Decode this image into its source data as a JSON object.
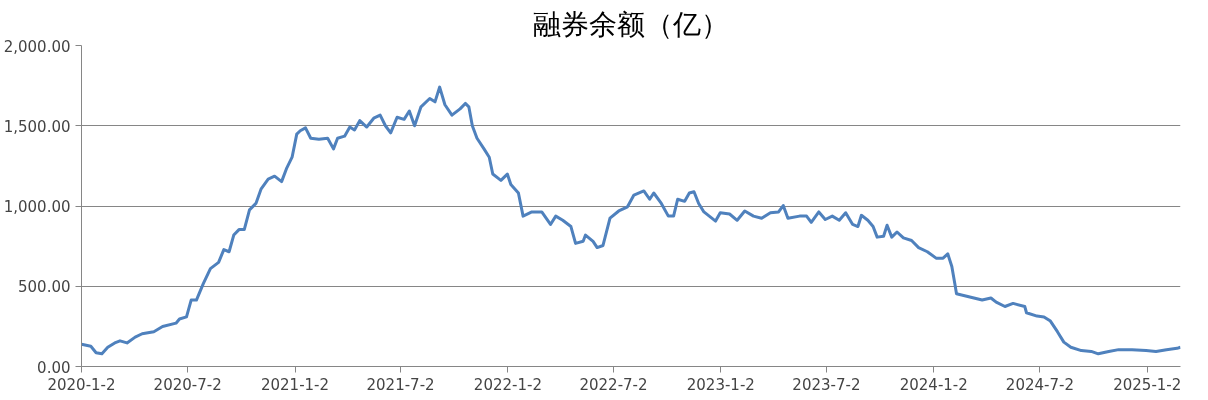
{
  "chart_data": {
    "type": "line",
    "title": "融券余额（亿）",
    "x": [
      "2020-01-02",
      "2020-01-18",
      "2020-01-27",
      "2020-02-06",
      "2020-02-16",
      "2020-02-28",
      "2020-03-08",
      "2020-03-20",
      "2020-04-03",
      "2020-04-15",
      "2020-05-05",
      "2020-05-20",
      "2020-06-12",
      "2020-06-18",
      "2020-06-30",
      "2020-07-08",
      "2020-07-17",
      "2020-07-29",
      "2020-08-10",
      "2020-08-24",
      "2020-09-02",
      "2020-09-11",
      "2020-09-19",
      "2020-09-28",
      "2020-10-07",
      "2020-10-16",
      "2020-10-27",
      "2020-11-05",
      "2020-11-17",
      "2020-11-28",
      "2020-12-10",
      "2020-12-19",
      "2020-12-28",
      "2021-01-05",
      "2021-01-11",
      "2021-01-20",
      "2021-01-29",
      "2021-02-12",
      "2021-02-27",
      "2021-03-09",
      "2021-03-16",
      "2021-03-28",
      "2021-04-06",
      "2021-04-14",
      "2021-04-23",
      "2021-05-05",
      "2021-05-17",
      "2021-05-28",
      "2021-06-06",
      "2021-06-15",
      "2021-06-26",
      "2021-07-08",
      "2021-07-17",
      "2021-07-26",
      "2021-08-06",
      "2021-08-21",
      "2021-08-30",
      "2021-09-07",
      "2021-09-16",
      "2021-09-28",
      "2021-10-12",
      "2021-10-21",
      "2021-10-27",
      "2021-11-02",
      "2021-11-10",
      "2021-11-22",
      "2021-12-01",
      "2021-12-07",
      "2021-12-21",
      "2022-01-01",
      "2022-01-07",
      "2022-01-20",
      "2022-01-28",
      "2022-02-12",
      "2022-03-01",
      "2022-03-16",
      "2022-03-25",
      "2022-04-06",
      "2022-04-20",
      "2022-04-28",
      "2022-05-11",
      "2022-05-15",
      "2022-05-28",
      "2022-06-04",
      "2022-06-14",
      "2022-06-26",
      "2022-07-11",
      "2022-07-26",
      "2022-08-06",
      "2022-08-23",
      "2022-09-02",
      "2022-09-09",
      "2022-09-22",
      "2022-10-04",
      "2022-10-13",
      "2022-10-20",
      "2022-11-01",
      "2022-11-09",
      "2022-11-17",
      "2022-11-25",
      "2022-12-04",
      "2022-12-24",
      "2023-01-01",
      "2023-01-17",
      "2023-01-30",
      "2023-02-12",
      "2023-02-27",
      "2023-03-13",
      "2023-03-28",
      "2023-04-11",
      "2023-04-19",
      "2023-04-27",
      "2023-05-17",
      "2023-05-29",
      "2023-06-06",
      "2023-06-19",
      "2023-06-30",
      "2023-07-12",
      "2023-07-24",
      "2023-08-04",
      "2023-08-16",
      "2023-08-25",
      "2023-08-31",
      "2023-09-11",
      "2023-09-20",
      "2023-09-27",
      "2023-10-08",
      "2023-10-14",
      "2023-10-22",
      "2023-10-31",
      "2023-11-11",
      "2023-11-25",
      "2023-12-07",
      "2023-12-22",
      "2024-01-06",
      "2024-01-18",
      "2024-01-26",
      "2024-02-02",
      "2024-02-07",
      "2024-02-10",
      "2024-03-02",
      "2024-03-25",
      "2024-04-09",
      "2024-04-18",
      "2024-05-03",
      "2024-05-17",
      "2024-06-06",
      "2024-06-09",
      "2024-06-27",
      "2024-07-09",
      "2024-07-20",
      "2024-08-01",
      "2024-08-12",
      "2024-08-24",
      "2024-09-11",
      "2024-09-28",
      "2024-10-10",
      "2024-10-28",
      "2024-11-14",
      "2024-12-07",
      "2024-12-31",
      "2025-01-17",
      "2025-02-04",
      "2025-02-22",
      "2025-02-28"
    ],
    "series": [
      {
        "color": "#4f81bd",
        "values": [
          139,
          126,
          86,
          79,
          120,
          147,
          160,
          147,
          183,
          204,
          217,
          249,
          270,
          296,
          309,
          414,
          414,
          518,
          610,
          649,
          728,
          715,
          819,
          853,
          853,
          976,
          1016,
          1107,
          1168,
          1186,
          1152,
          1238,
          1304,
          1448,
          1469,
          1487,
          1422,
          1416,
          1422,
          1356,
          1422,
          1435,
          1492,
          1474,
          1532,
          1492,
          1547,
          1566,
          1500,
          1456,
          1553,
          1540,
          1592,
          1500,
          1618,
          1670,
          1649,
          1741,
          1631,
          1566,
          1605,
          1639,
          1618,
          1500,
          1422,
          1356,
          1304,
          1199,
          1160,
          1199,
          1134,
          1081,
          937,
          963,
          963,
          885,
          937,
          911,
          872,
          767,
          780,
          819,
          780,
          741,
          754,
          924,
          969,
          995,
          1068,
          1094,
          1042,
          1081,
          1016,
          937,
          937,
          1042,
          1029,
          1081,
          1089,
          1016,
          963,
          906,
          958,
          950,
          911,
          969,
          937,
          924,
          958,
          963,
          1003,
          924,
          937,
          937,
          898,
          963,
          916,
          937,
          911,
          958,
          885,
          872,
          942,
          911,
          872,
          806,
          812,
          880,
          806,
          838,
          801,
          785,
          741,
          715,
          675,
          675,
          702,
          623,
          518,
          453,
          435,
          414,
          427,
          401,
          374,
          393,
          374,
          335,
          314,
          309,
          283,
          217,
          152,
          120,
          99,
          94,
          79,
          94,
          105,
          105,
          99,
          94,
          105,
          113,
          120
        ]
      }
    ],
    "xlim": [
      "2020-01-02",
      "2025-02-28"
    ],
    "xticks": [
      {
        "value": "2020-01-02",
        "label": "2020-1-2"
      },
      {
        "value": "2020-07-02",
        "label": "2020-7-2"
      },
      {
        "value": "2021-01-02",
        "label": "2021-1-2"
      },
      {
        "value": "2021-07-02",
        "label": "2021-7-2"
      },
      {
        "value": "2022-01-02",
        "label": "2022-1-2"
      },
      {
        "value": "2022-07-02",
        "label": "2022-7-2"
      },
      {
        "value": "2023-01-02",
        "label": "2023-1-2"
      },
      {
        "value": "2023-07-02",
        "label": "2023-7-2"
      },
      {
        "value": "2024-01-02",
        "label": "2024-1-2"
      },
      {
        "value": "2024-07-02",
        "label": "2024-7-2"
      },
      {
        "value": "2025-01-02",
        "label": "2025-1-2"
      }
    ],
    "ylim": [
      0,
      2000
    ],
    "yticks": [
      {
        "value": 0,
        "label": "0.00"
      },
      {
        "value": 500,
        "label": "500.00"
      },
      {
        "value": 1000,
        "label": "1,000.00"
      },
      {
        "value": 1500,
        "label": "1,500.00"
      },
      {
        "value": 2000,
        "label": "2,000.00"
      }
    ],
    "grid": "y",
    "marker": "none",
    "line_style": "solid"
  }
}
